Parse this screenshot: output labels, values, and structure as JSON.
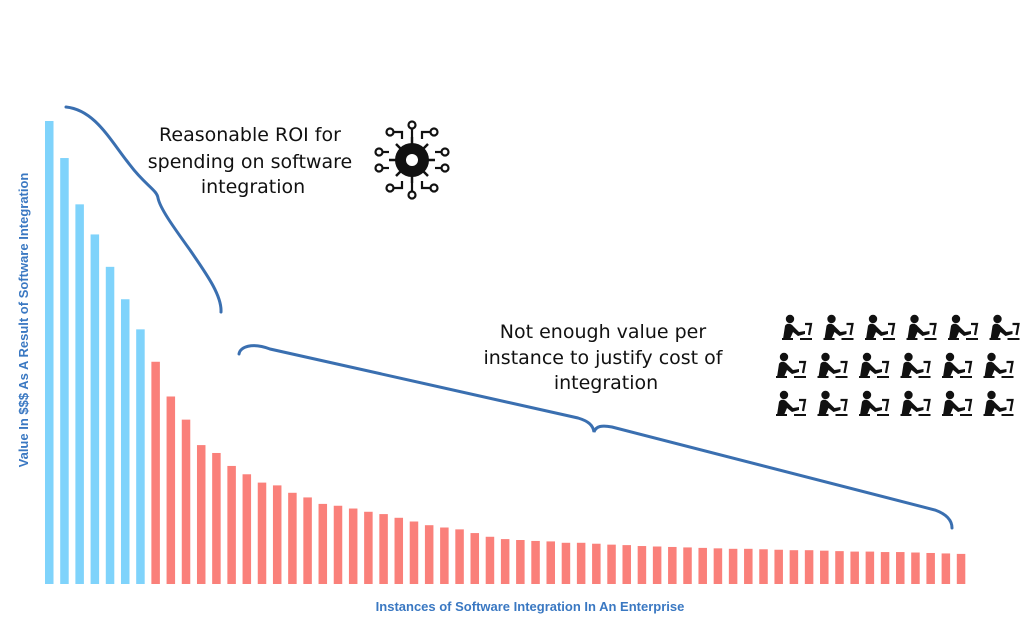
{
  "chart_data": {
    "type": "bar",
    "xlabel": "Instances of Software Integration In An Enterprise",
    "ylabel": "Value In $$$ As A Result of Software Integration",
    "ylim": [
      0,
      100
    ],
    "grid": false,
    "values": [
      100,
      92,
      82,
      75.5,
      68.5,
      61.5,
      55,
      48,
      40.5,
      35.5,
      30,
      28.3,
      25.5,
      23.7,
      21.9,
      21.3,
      19.7,
      18.7,
      17.3,
      16.9,
      16.3,
      15.6,
      15.1,
      14.3,
      13.5,
      12.7,
      12.2,
      11.8,
      11.0,
      10.2,
      9.7,
      9.5,
      9.3,
      9.2,
      8.9,
      8.9,
      8.7,
      8.5,
      8.4,
      8.2,
      8.1,
      8.0,
      7.9,
      7.8,
      7.7,
      7.6,
      7.6,
      7.5,
      7.4,
      7.3,
      7.3,
      7.2,
      7.1,
      7.0,
      7.0,
      6.9,
      6.9,
      6.8,
      6.7,
      6.6,
      6.5
    ],
    "colors": {
      "high_roi": "#7fd3fb",
      "low_roi": "#fa807a",
      "brace": "#3a6fb0",
      "axis_title": "#3a78c2"
    },
    "high_roi_count": 7,
    "annotations": {
      "high_roi": [
        "Reasonable ROI for",
        "spending on software",
        "integration"
      ],
      "low_roi": [
        "Not enough value per",
        "instance to justify cost of",
        "integration"
      ]
    },
    "icons": [
      "gear-circuit-icon",
      "worker-at-desk-icon"
    ]
  }
}
